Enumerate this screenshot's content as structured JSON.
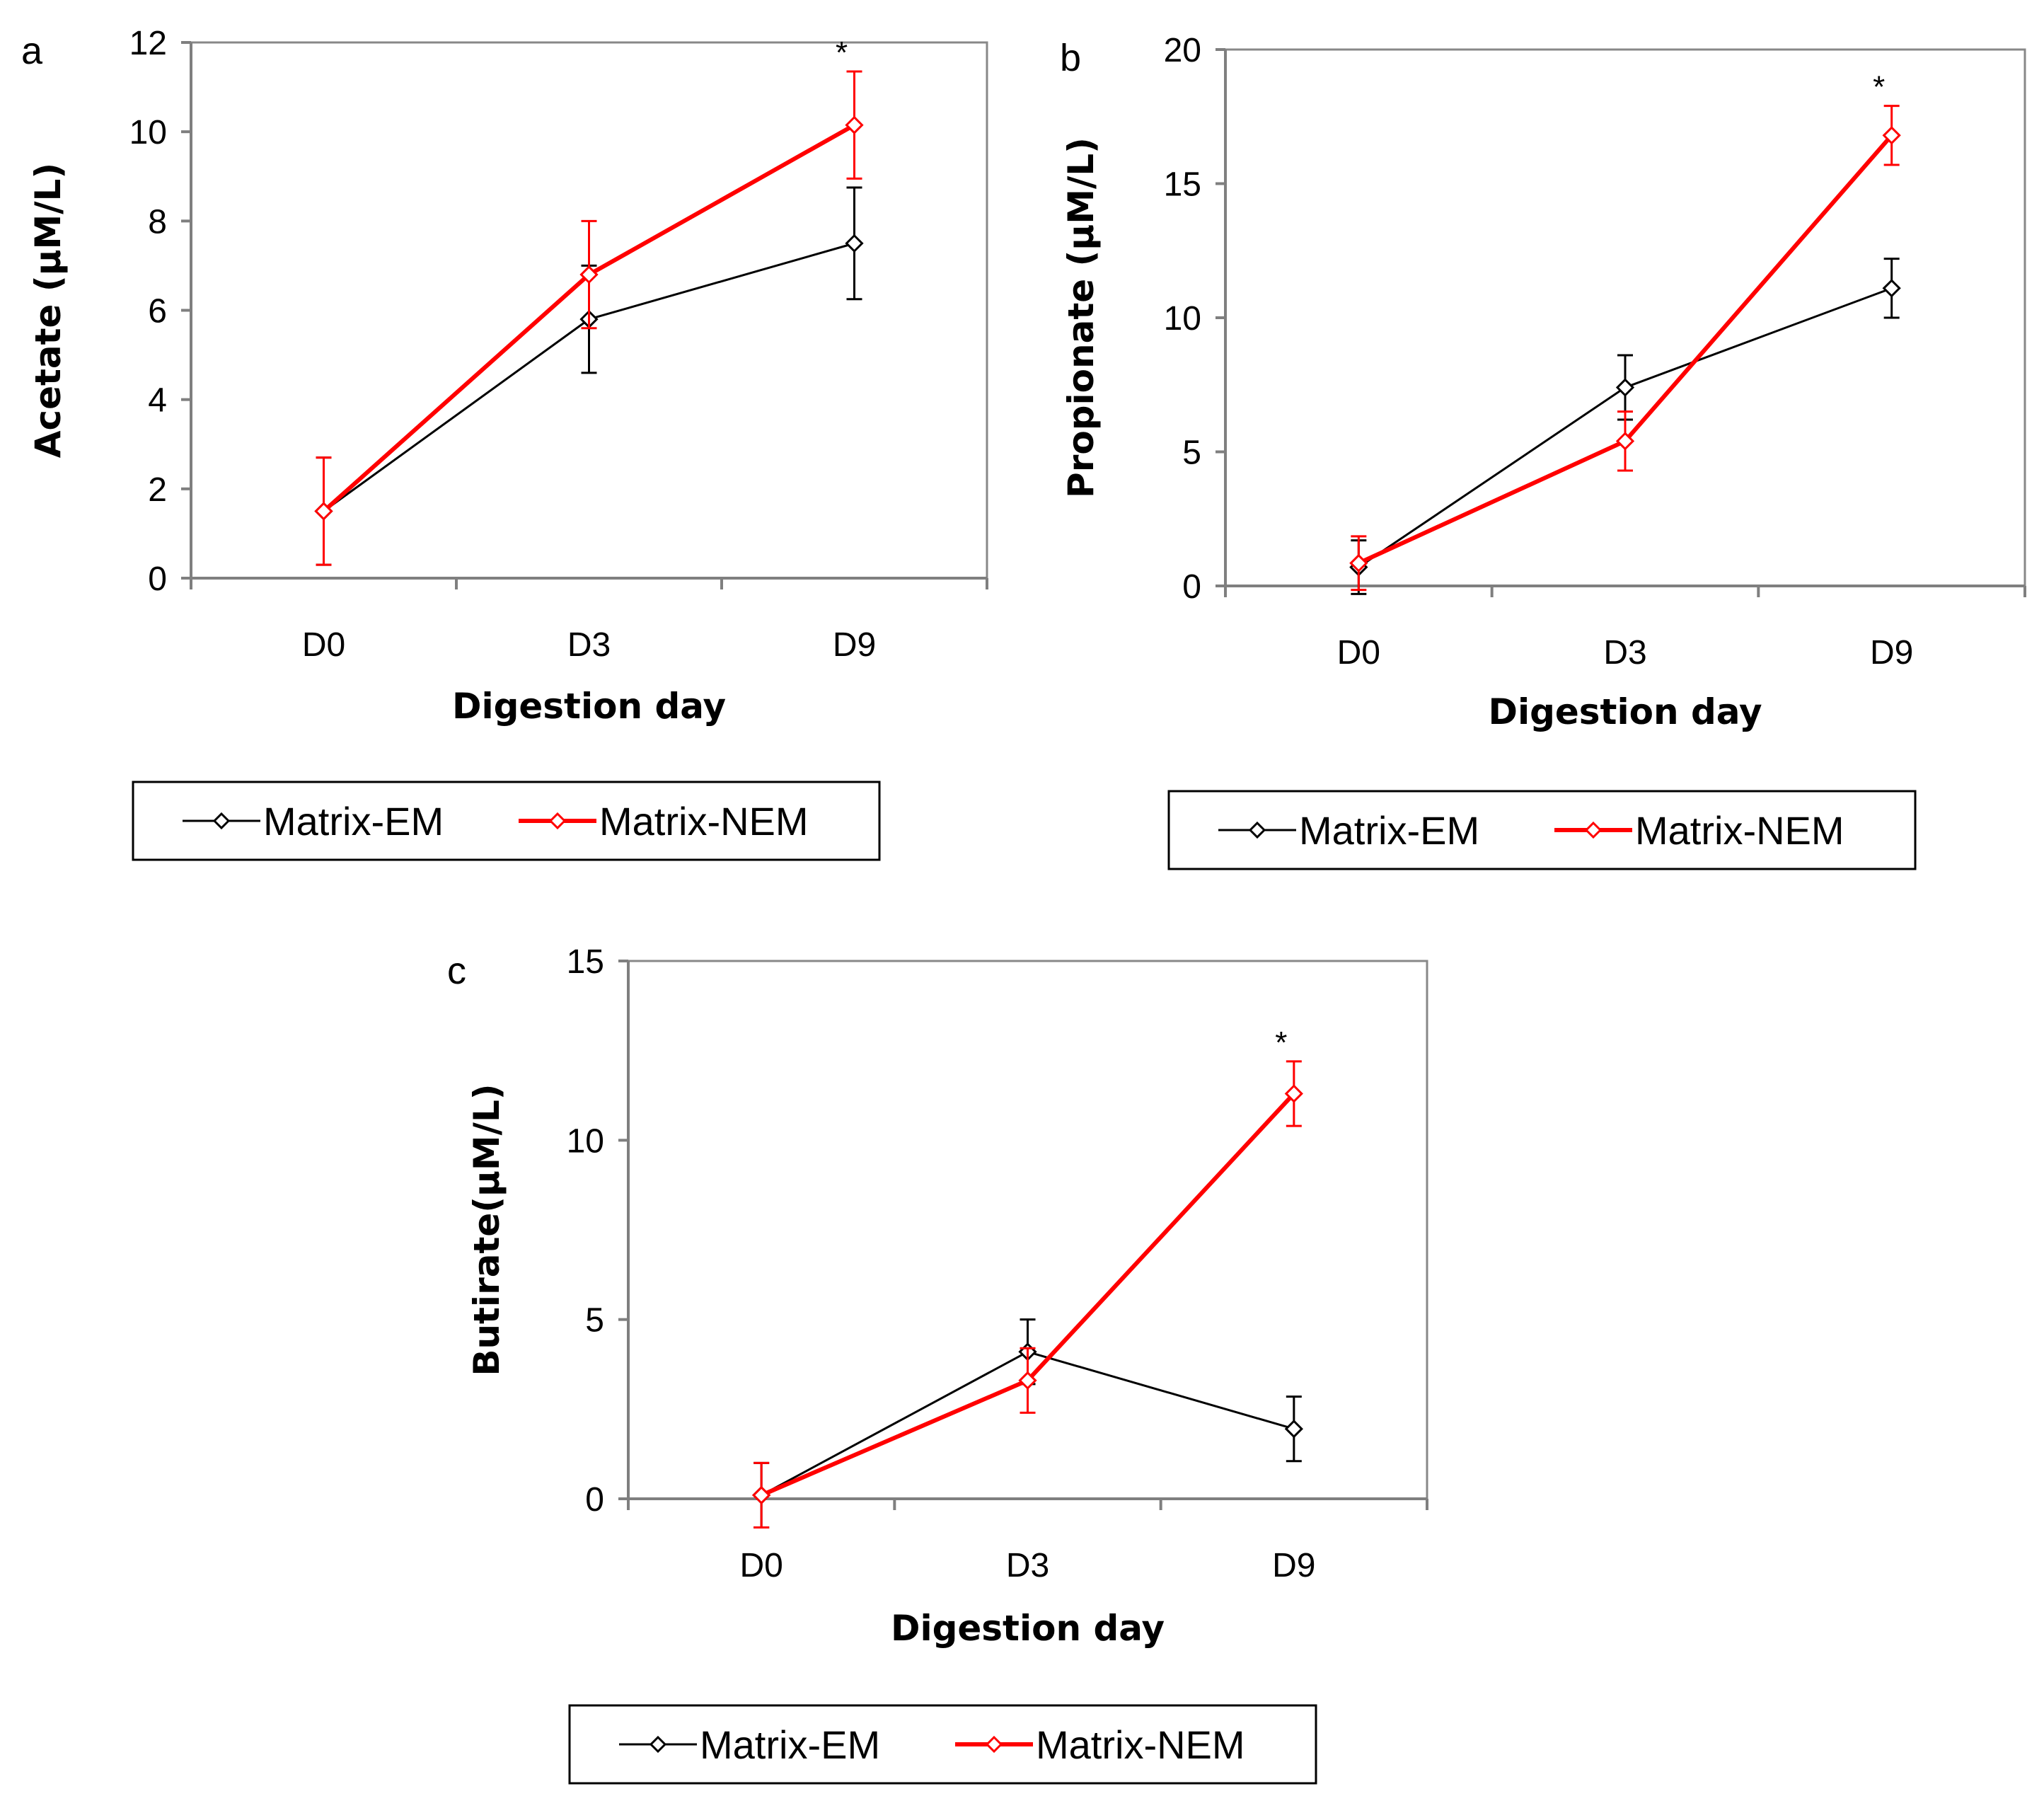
{
  "figure": {
    "legend_entries": [
      {
        "name": "Matrix-EM",
        "color": "#000000",
        "marker": "diamond-open"
      },
      {
        "name": "Matrix-NEM",
        "color": "#ff0000",
        "marker": "diamond-open"
      }
    ]
  },
  "chart_data": [
    {
      "panel": "a",
      "type": "line",
      "title": "",
      "xlabel": "Digestion day",
      "ylabel": "Acetate (µM/L)",
      "categories": [
        "D0",
        "D3",
        "D9"
      ],
      "ylim": [
        0,
        12
      ],
      "yticks": [
        0,
        2,
        4,
        6,
        8,
        10,
        12
      ],
      "grid": false,
      "legend": "bottom",
      "series": [
        {
          "name": "Matrix-EM",
          "color": "#000000",
          "values": [
            1.5,
            5.8,
            7.5
          ],
          "errors": [
            1.2,
            1.2,
            1.25
          ]
        },
        {
          "name": "Matrix-NEM",
          "color": "#ff0000",
          "values": [
            1.5,
            6.8,
            10.15
          ],
          "errors": [
            1.2,
            1.2,
            1.2
          ]
        }
      ],
      "annotations": [
        {
          "text": "*",
          "category": "D9"
        }
      ]
    },
    {
      "panel": "b",
      "type": "line",
      "title": "",
      "xlabel": "Digestion day",
      "ylabel": "Propionate (µM/L)",
      "categories": [
        "D0",
        "D3",
        "D9"
      ],
      "ylim": [
        0,
        20
      ],
      "yticks": [
        0,
        5,
        10,
        15,
        20
      ],
      "grid": false,
      "legend": "bottom",
      "series": [
        {
          "name": "Matrix-EM",
          "color": "#000000",
          "values": [
            0.7,
            7.4,
            11.1
          ],
          "errors": [
            1.0,
            1.2,
            1.1
          ]
        },
        {
          "name": "Matrix-NEM",
          "color": "#ff0000",
          "values": [
            0.85,
            5.4,
            16.8
          ],
          "errors": [
            1.0,
            1.1,
            1.1
          ]
        }
      ],
      "annotations": [
        {
          "text": "*",
          "category": "D9"
        }
      ]
    },
    {
      "panel": "c",
      "type": "line",
      "title": "",
      "xlabel": "Digestion day",
      "ylabel": "Butirate(µM/L)",
      "categories": [
        "D0",
        "D3",
        "D9"
      ],
      "ylim": [
        0,
        15
      ],
      "yticks": [
        0,
        5,
        10,
        15
      ],
      "grid": false,
      "legend": "bottom",
      "series": [
        {
          "name": "Matrix-EM",
          "color": "#000000",
          "values": [
            0.1,
            4.1,
            1.95
          ],
          "errors": [
            0.9,
            0.9,
            0.9
          ]
        },
        {
          "name": "Matrix-NEM",
          "color": "#ff0000",
          "values": [
            0.1,
            3.3,
            11.3
          ],
          "errors": [
            0.9,
            0.9,
            0.9
          ]
        }
      ],
      "annotations": [
        {
          "text": "*",
          "category": "D9"
        }
      ]
    }
  ]
}
